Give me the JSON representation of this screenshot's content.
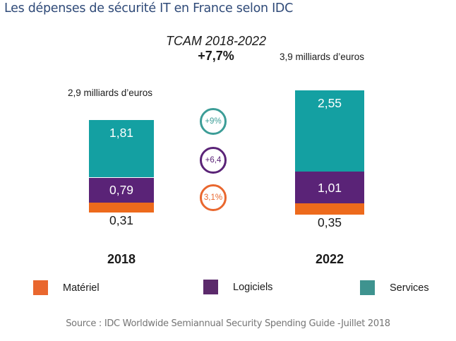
{
  "title": "Les dépenses de sécurité IT en France selon IDC",
  "tcam": {
    "label": "TCAM 2018-2022",
    "value": "+7,7%"
  },
  "source": "Source : IDC Worldwide Semiannual Security Spending Guide -Juillet 2018",
  "colors": {
    "materiel": "#ed6a1c",
    "logiciels": "#5a2377",
    "services": "#14a0a2",
    "title": "#2f4a78"
  },
  "growth_badges": [
    {
      "label": "+9%",
      "series": "Services",
      "color": "#3c9d97"
    },
    {
      "label": "+6,4",
      "series": "Logiciels",
      "color": "#5a2377"
    },
    {
      "label": "3,1%",
      "series": "Matériel",
      "color": "#e9672e"
    }
  ],
  "chart_data": {
    "type": "bar",
    "stacked": true,
    "title": "Les dépenses de sécurité IT en France selon IDC",
    "subtitle": "TCAM 2018-2022 +7,7%",
    "categories": [
      "2018",
      "2022"
    ],
    "totals": [
      "2,9 milliards d’euros",
      "3,9 milliards d’euros"
    ],
    "series": [
      {
        "name": "Matériel",
        "values": [
          0.31,
          0.35
        ],
        "labels": [
          "0,31",
          "0,35"
        ],
        "color": "#ed6a1c"
      },
      {
        "name": "Logiciels",
        "values": [
          0.79,
          1.01
        ],
        "labels": [
          "0,79",
          "1,01"
        ],
        "color": "#5a2377"
      },
      {
        "name": "Services",
        "values": [
          1.81,
          2.55
        ],
        "labels": [
          "1,81",
          "2,55"
        ],
        "color": "#14a0a2"
      }
    ],
    "legend": [
      "Matériel",
      "Logiciels",
      "Services"
    ],
    "legend_position": "bottom",
    "xlabel": "",
    "ylabel": "milliards d’euros",
    "grid": false
  }
}
